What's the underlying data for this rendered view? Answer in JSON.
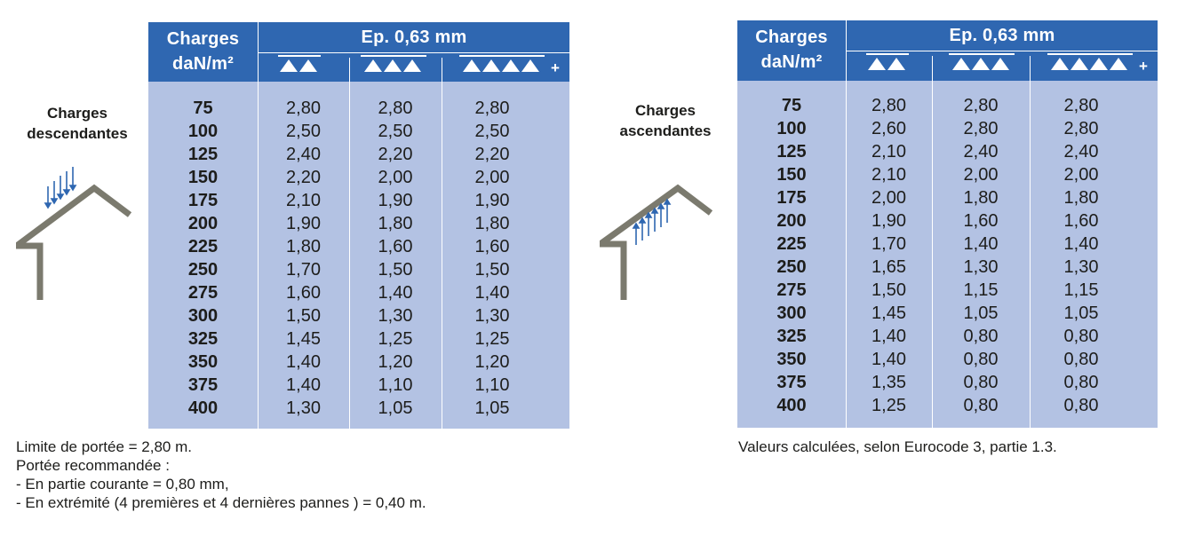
{
  "left": {
    "side_label": [
      "Charges",
      "descendantes"
    ],
    "header": {
      "charges": [
        "Charges",
        "daN/m²"
      ],
      "ep": "Ep. 0,63 mm"
    },
    "rows": [
      [
        "75",
        "2,80",
        "2,80",
        "2,80"
      ],
      [
        "100",
        "2,50",
        "2,50",
        "2,50"
      ],
      [
        "125",
        "2,40",
        "2,20",
        "2,20"
      ],
      [
        "150",
        "2,20",
        "2,00",
        "2,00"
      ],
      [
        "175",
        "2,10",
        "1,90",
        "1,90"
      ],
      [
        "200",
        "1,90",
        "1,80",
        "1,80"
      ],
      [
        "225",
        "1,80",
        "1,60",
        "1,60"
      ],
      [
        "250",
        "1,70",
        "1,50",
        "1,50"
      ],
      [
        "275",
        "1,60",
        "1,40",
        "1,40"
      ],
      [
        "300",
        "1,50",
        "1,30",
        "1,30"
      ],
      [
        "325",
        "1,45",
        "1,25",
        "1,25"
      ],
      [
        "350",
        "1,40",
        "1,20",
        "1,20"
      ],
      [
        "375",
        "1,40",
        "1,10",
        "1,10"
      ],
      [
        "400",
        "1,30",
        "1,05",
        "1,05"
      ]
    ],
    "notes": [
      "Limite de portée = 2,80 m.",
      "Portée recommandée :",
      "- En partie courante = 0,80 mm,",
      "- En extrémité (4 premières et 4 dernières pannes ) = 0,40 m."
    ]
  },
  "right": {
    "side_label": [
      "Charges",
      "ascendantes"
    ],
    "header": {
      "charges": [
        "Charges",
        "daN/m²"
      ],
      "ep": "Ep. 0,63 mm"
    },
    "rows": [
      [
        "75",
        "2,80",
        "2,80",
        "2,80"
      ],
      [
        "100",
        "2,60",
        "2,80",
        "2,80"
      ],
      [
        "125",
        "2,10",
        "2,40",
        "2,40"
      ],
      [
        "150",
        "2,10",
        "2,00",
        "2,00"
      ],
      [
        "175",
        "2,00",
        "1,80",
        "1,80"
      ],
      [
        "200",
        "1,90",
        "1,60",
        "1,60"
      ],
      [
        "225",
        "1,70",
        "1,40",
        "1,40"
      ],
      [
        "250",
        "1,65",
        "1,30",
        "1,30"
      ],
      [
        "275",
        "1,50",
        "1,15",
        "1,15"
      ],
      [
        "300",
        "1,45",
        "1,05",
        "1,05"
      ],
      [
        "325",
        "1,40",
        "0,80",
        "0,80"
      ],
      [
        "350",
        "1,40",
        "0,80",
        "0,80"
      ],
      [
        "375",
        "1,35",
        "0,80",
        "0,80"
      ],
      [
        "400",
        "1,25",
        "0,80",
        "0,80"
      ]
    ],
    "notes": [
      "Valeurs calculées, selon Eurocode 3, partie 1.3."
    ]
  },
  "span_symbols": {
    "count": [
      2,
      3,
      4
    ],
    "last_has_plus": true,
    "plus_glyph": "+"
  },
  "colors": {
    "header_bg": "#2f67b1",
    "body_bg": "#b3c2e3",
    "roof": "#7b7a6e",
    "arrow": "#2f67b1"
  },
  "icons": {
    "left": "house-downward-load-icon",
    "right": "house-upward-load-icon"
  }
}
